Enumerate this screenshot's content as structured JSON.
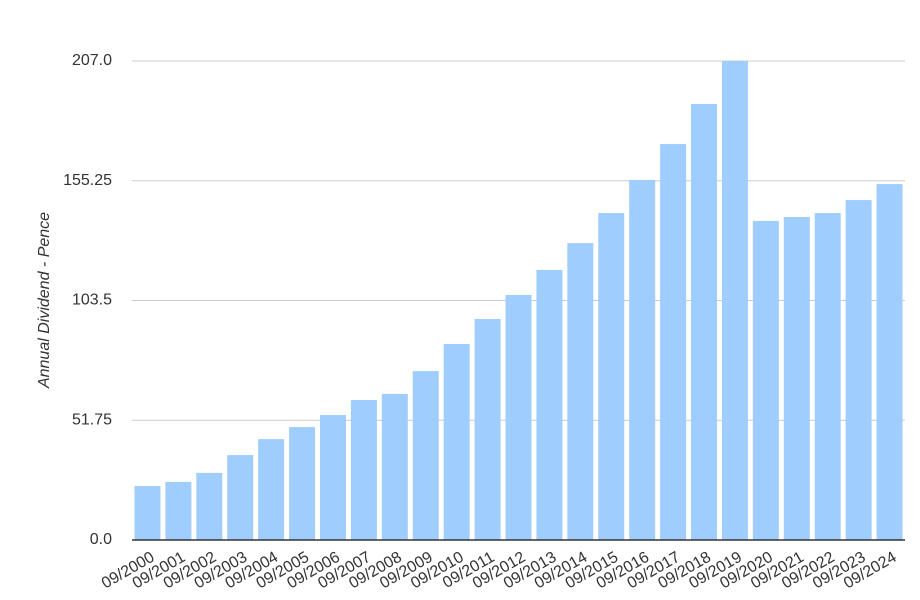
{
  "chart_data": {
    "type": "bar",
    "y_label": "Annual Dividend - Pence",
    "categories": [
      "09/2000",
      "09/2001",
      "09/2002",
      "09/2003",
      "09/2004",
      "09/2005",
      "09/2006",
      "09/2007",
      "09/2008",
      "09/2009",
      "09/2010",
      "09/2011",
      "09/2012",
      "09/2013",
      "09/2014",
      "09/2015",
      "09/2016",
      "09/2017",
      "09/2018",
      "09/2019",
      "09/2020",
      "09/2021",
      "09/2022",
      "09/2023",
      "09/2024"
    ],
    "values": [
      23.3,
      25.1,
      29.0,
      36.7,
      43.6,
      48.8,
      54.0,
      60.5,
      63.1,
      73.0,
      84.7,
      95.5,
      105.9,
      116.7,
      128.3,
      141.3,
      155.6,
      171.1,
      188.4,
      207.0,
      137.9,
      139.6,
      141.3,
      146.9,
      153.8
    ],
    "color": "#9fcdfd",
    "ylim": [
      0,
      207
    ],
    "yticks": [
      {
        "value": 0,
        "label": "0.0"
      },
      51.75,
      103.5,
      155.25,
      {
        "value": 207,
        "label": "207.0"
      }
    ],
    "grid": true
  }
}
